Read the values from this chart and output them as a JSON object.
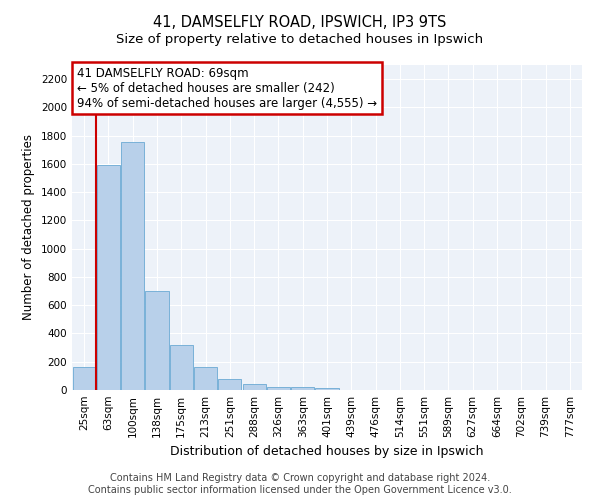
{
  "title": "41, DAMSELFLY ROAD, IPSWICH, IP3 9TS",
  "subtitle": "Size of property relative to detached houses in Ipswich",
  "xlabel": "Distribution of detached houses by size in Ipswich",
  "ylabel": "Number of detached properties",
  "bar_labels": [
    "25sqm",
    "63sqm",
    "100sqm",
    "138sqm",
    "175sqm",
    "213sqm",
    "251sqm",
    "288sqm",
    "326sqm",
    "363sqm",
    "401sqm",
    "439sqm",
    "476sqm",
    "514sqm",
    "551sqm",
    "589sqm",
    "627sqm",
    "664sqm",
    "702sqm",
    "739sqm",
    "777sqm"
  ],
  "bar_values": [
    165,
    1595,
    1755,
    700,
    320,
    160,
    80,
    42,
    22,
    18,
    17,
    0,
    0,
    0,
    0,
    0,
    0,
    0,
    0,
    0,
    0
  ],
  "bar_color": "#b8d0ea",
  "bar_edge_color": "#6aaad4",
  "vline_x_index": 1,
  "annotation_line1": "41 DAMSELFLY ROAD: 69sqm",
  "annotation_line2": "← 5% of detached houses are smaller (242)",
  "annotation_line3": "94% of semi-detached houses are larger (4,555) →",
  "annotation_box_color": "#ffffff",
  "annotation_box_edge_color": "#cc0000",
  "vline_color": "#cc0000",
  "ylim": [
    0,
    2300
  ],
  "yticks": [
    0,
    200,
    400,
    600,
    800,
    1000,
    1200,
    1400,
    1600,
    1800,
    2000,
    2200
  ],
  "footer_line1": "Contains HM Land Registry data © Crown copyright and database right 2024.",
  "footer_line2": "Contains public sector information licensed under the Open Government Licence v3.0.",
  "bg_color": "#edf2f9",
  "grid_color": "#ffffff",
  "title_fontsize": 10.5,
  "subtitle_fontsize": 9.5,
  "ylabel_fontsize": 8.5,
  "xlabel_fontsize": 9,
  "tick_fontsize": 7.5,
  "footer_fontsize": 7,
  "annotation_fontsize": 8.5
}
